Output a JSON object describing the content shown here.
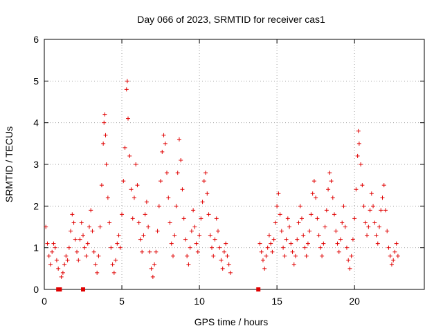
{
  "chart_data": {
    "type": "scatter",
    "title": "Day 066 of 2023, SRMTID for receiver cas1",
    "xlabel": "GPS time / hours",
    "ylabel": "SRMTID / TECUs",
    "xlim": [
      0,
      24.5
    ],
    "ylim": [
      0,
      6
    ],
    "xticks": [
      0,
      5,
      10,
      15,
      20
    ],
    "yticks": [
      0,
      1,
      2,
      3,
      4,
      5,
      6
    ],
    "grid": true,
    "color": "#e00000",
    "marker": "plus",
    "gap": [
      12.2,
      13.8
    ],
    "series": [
      {
        "name": "SRMTID",
        "x": [
          0.1,
          0.2,
          0.3,
          0.4,
          0.5,
          0.6,
          0.7,
          0.8,
          0.9,
          1.1,
          1.2,
          1.3,
          1.4,
          1.5,
          1.6,
          1.7,
          1.8,
          1.9,
          2.0,
          2.1,
          2.2,
          2.3,
          2.4,
          2.5,
          2.6,
          2.7,
          2.8,
          2.9,
          3.0,
          3.1,
          3.2,
          3.3,
          3.4,
          3.5,
          3.6,
          3.7,
          3.8,
          3.85,
          3.9,
          3.95,
          4.0,
          4.1,
          4.2,
          4.3,
          4.4,
          4.5,
          4.6,
          4.7,
          4.8,
          4.9,
          5.0,
          5.1,
          5.2,
          5.3,
          5.35,
          5.4,
          5.5,
          5.6,
          5.7,
          5.8,
          5.9,
          6.0,
          6.1,
          6.2,
          6.3,
          6.4,
          6.5,
          6.6,
          6.7,
          6.8,
          6.9,
          7.0,
          7.1,
          7.2,
          7.3,
          7.4,
          7.5,
          7.6,
          7.7,
          7.8,
          7.9,
          8.0,
          8.1,
          8.2,
          8.3,
          8.4,
          8.5,
          8.6,
          8.7,
          8.8,
          8.9,
          9.0,
          9.1,
          9.2,
          9.3,
          9.4,
          9.5,
          9.6,
          9.7,
          9.8,
          9.9,
          10.0,
          10.1,
          10.2,
          10.3,
          10.4,
          10.5,
          10.6,
          10.7,
          10.8,
          10.9,
          11.0,
          11.1,
          11.2,
          11.3,
          11.4,
          11.5,
          11.6,
          11.7,
          11.8,
          11.9,
          12.0,
          13.9,
          14.0,
          14.1,
          14.2,
          14.3,
          14.4,
          14.5,
          14.6,
          14.7,
          14.8,
          14.9,
          15.0,
          15.1,
          15.2,
          15.3,
          15.4,
          15.5,
          15.6,
          15.7,
          15.8,
          15.9,
          16.0,
          16.1,
          16.2,
          16.3,
          16.4,
          16.5,
          16.6,
          16.7,
          16.8,
          16.9,
          17.0,
          17.1,
          17.2,
          17.3,
          17.4,
          17.5,
          17.6,
          17.7,
          17.8,
          17.9,
          18.0,
          18.1,
          18.2,
          18.3,
          18.4,
          18.5,
          18.6,
          18.7,
          18.8,
          18.9,
          19.0,
          19.1,
          19.2,
          19.3,
          19.4,
          19.5,
          19.6,
          19.7,
          19.8,
          19.9,
          20.0,
          20.1,
          20.2,
          20.25,
          20.3,
          20.4,
          20.5,
          20.6,
          20.7,
          20.8,
          20.9,
          21.0,
          21.1,
          21.2,
          21.3,
          21.4,
          21.5,
          21.6,
          21.7,
          21.8,
          21.9,
          22.0,
          22.1,
          22.2,
          22.3,
          22.4,
          22.5,
          22.6,
          22.7,
          22.8
        ],
        "y": [
          1.5,
          1.1,
          0.8,
          0.6,
          0.9,
          1.1,
          1.0,
          0.7,
          0.5,
          0.3,
          0.4,
          0.6,
          0.8,
          0.7,
          1.0,
          1.4,
          1.8,
          1.6,
          1.2,
          0.9,
          0.7,
          1.2,
          1.6,
          1.3,
          1.0,
          0.8,
          1.1,
          1.5,
          1.9,
          1.4,
          0.9,
          0.6,
          0.4,
          0.8,
          1.5,
          2.5,
          3.5,
          4.0,
          4.2,
          3.7,
          3.0,
          2.2,
          1.6,
          1.0,
          0.6,
          0.4,
          0.7,
          1.1,
          1.3,
          1.0,
          1.8,
          2.6,
          3.4,
          4.8,
          5.0,
          4.1,
          3.2,
          2.4,
          1.7,
          2.2,
          3.0,
          2.5,
          1.6,
          1.2,
          0.9,
          1.3,
          1.8,
          2.1,
          1.5,
          0.9,
          0.5,
          0.3,
          0.6,
          0.9,
          1.4,
          2.0,
          2.6,
          3.3,
          3.7,
          3.5,
          2.8,
          2.2,
          1.6,
          1.1,
          0.8,
          1.3,
          2.0,
          2.8,
          3.6,
          3.1,
          2.4,
          1.7,
          1.2,
          0.8,
          0.6,
          1.0,
          1.4,
          1.9,
          1.5,
          1.1,
          0.9,
          1.3,
          1.7,
          2.1,
          2.6,
          2.8,
          2.3,
          1.8,
          1.3,
          1.0,
          0.8,
          1.2,
          1.7,
          1.4,
          1.0,
          0.7,
          0.5,
          0.9,
          1.1,
          0.8,
          0.6,
          0.4,
          1.1,
          0.9,
          0.7,
          0.5,
          0.8,
          1.0,
          1.3,
          1.1,
          0.9,
          1.2,
          1.6,
          2.0,
          2.3,
          1.8,
          1.4,
          1.0,
          0.8,
          1.2,
          1.7,
          1.5,
          1.1,
          0.9,
          0.6,
          0.8,
          1.2,
          1.6,
          2.0,
          1.7,
          1.3,
          1.0,
          0.8,
          1.1,
          1.4,
          1.8,
          2.3,
          2.6,
          2.2,
          1.7,
          1.3,
          1.0,
          0.8,
          1.1,
          1.5,
          1.9,
          2.4,
          2.8,
          2.6,
          2.2,
          1.8,
          1.4,
          1.1,
          0.9,
          1.2,
          1.6,
          2.0,
          1.5,
          1.0,
          0.7,
          0.5,
          0.8,
          1.2,
          1.7,
          2.4,
          3.2,
          3.8,
          3.5,
          3.0,
          2.5,
          2.0,
          1.6,
          1.3,
          1.5,
          1.9,
          2.3,
          2.0,
          1.6,
          1.3,
          1.1,
          1.5,
          1.9,
          2.2,
          2.5,
          1.9,
          1.4,
          1.0,
          0.8,
          0.6,
          0.7,
          0.9,
          1.1,
          0.8
        ]
      },
      {
        "name": "markers",
        "x": [
          0.9,
          1.0,
          2.5,
          13.8
        ],
        "y": [
          0,
          0,
          0,
          0
        ]
      }
    ]
  }
}
